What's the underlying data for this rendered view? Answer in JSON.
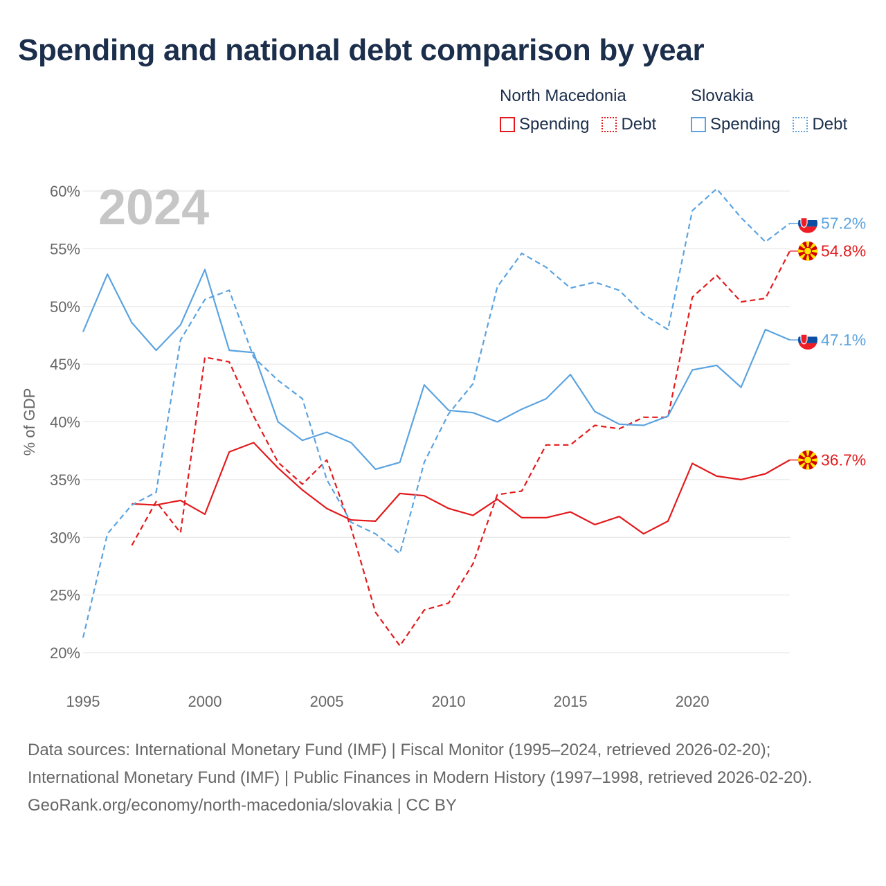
{
  "title": "Spending and national debt comparison by year",
  "legend": {
    "groups": [
      {
        "name": "North Macedonia",
        "color": "#e31a1c",
        "items": [
          {
            "label": "Spending",
            "style": "solid"
          },
          {
            "label": "Debt",
            "style": "dotted"
          }
        ]
      },
      {
        "name": "Slovakia",
        "color": "#5ba3e0",
        "items": [
          {
            "label": "Spending",
            "style": "solid"
          },
          {
            "label": "Debt",
            "style": "dotted"
          }
        ]
      }
    ]
  },
  "year_watermark": "2024",
  "sources": {
    "line1": "Data sources: International Monetary Fund (IMF) | Fiscal Monitor (1995–2024, retrieved 2026-02-20); International Monetary Fund (IMF) | Public Finances in Modern History (1997–1998, retrieved 2026-02-20).",
    "line2": "GeoRank.org/economy/north-macedonia/slovakia | CC BY"
  },
  "chart_data": {
    "type": "line",
    "title": "Spending and national debt comparison by year",
    "xlabel": "",
    "ylabel": "% of GDP",
    "xlim": [
      1995,
      2024
    ],
    "ylim": [
      20,
      60
    ],
    "x_ticks": [
      1995,
      2000,
      2005,
      2010,
      2015,
      2020
    ],
    "y_ticks": [
      20,
      25,
      30,
      35,
      40,
      45,
      50,
      55,
      60
    ],
    "y_tick_labels": [
      "20%",
      "25%",
      "30%",
      "35%",
      "40%",
      "45%",
      "50%",
      "55%",
      "60%"
    ],
    "grid": true,
    "legend_position": "top-right",
    "series": [
      {
        "name": "North Macedonia Spending",
        "country": "North Macedonia",
        "metric": "Spending",
        "color": "#e31a1c",
        "dashed": false,
        "end_label": "36.7%",
        "flag": "north-macedonia-flag-icon",
        "x": [
          1997,
          1998,
          1999,
          2000,
          2001,
          2002,
          2003,
          2004,
          2005,
          2006,
          2007,
          2008,
          2009,
          2010,
          2011,
          2012,
          2013,
          2014,
          2015,
          2016,
          2017,
          2018,
          2019,
          2020,
          2021,
          2022,
          2023,
          2024
        ],
        "values": [
          32.9,
          32.8,
          33.2,
          32.0,
          37.4,
          38.2,
          36.0,
          34.1,
          32.5,
          31.5,
          31.4,
          33.8,
          33.6,
          32.5,
          31.9,
          33.3,
          31.7,
          31.7,
          32.2,
          31.1,
          31.8,
          30.3,
          31.4,
          36.4,
          35.3,
          35.0,
          35.5,
          36.7
        ]
      },
      {
        "name": "North Macedonia Debt",
        "country": "North Macedonia",
        "metric": "Debt",
        "color": "#e31a1c",
        "dashed": true,
        "end_label": "54.8%",
        "flag": "north-macedonia-flag-icon",
        "x": [
          1997,
          1998,
          1999,
          2000,
          2001,
          2002,
          2003,
          2004,
          2005,
          2006,
          2007,
          2008,
          2009,
          2010,
          2011,
          2012,
          2013,
          2014,
          2015,
          2016,
          2017,
          2018,
          2019,
          2020,
          2021,
          2022,
          2023,
          2024
        ],
        "values": [
          29.3,
          33.1,
          30.4,
          45.6,
          45.2,
          40.5,
          36.5,
          34.6,
          36.7,
          30.8,
          23.5,
          20.6,
          23.7,
          24.3,
          27.7,
          33.7,
          34.0,
          38.0,
          38.0,
          39.7,
          39.4,
          40.4,
          40.4,
          50.8,
          52.7,
          50.4,
          50.7,
          54.8
        ]
      },
      {
        "name": "Slovakia Spending",
        "country": "Slovakia",
        "metric": "Spending",
        "color": "#5ba3e0",
        "dashed": false,
        "end_label": "47.1%",
        "flag": "slovakia-flag-icon",
        "x": [
          1995,
          1996,
          1997,
          1998,
          1999,
          2000,
          2001,
          2002,
          2003,
          2004,
          2005,
          2006,
          2007,
          2008,
          2009,
          2010,
          2011,
          2012,
          2013,
          2014,
          2015,
          2016,
          2017,
          2018,
          2019,
          2020,
          2021,
          2022,
          2023,
          2024
        ],
        "values": [
          47.8,
          52.8,
          48.6,
          46.2,
          48.4,
          53.2,
          46.2,
          46.0,
          40.0,
          38.4,
          39.1,
          38.2,
          35.9,
          36.5,
          43.2,
          41.0,
          40.8,
          40.0,
          41.1,
          42.0,
          44.1,
          40.9,
          39.8,
          39.7,
          40.5,
          44.5,
          44.9,
          43.0,
          48.0,
          47.1
        ]
      },
      {
        "name": "Slovakia Debt",
        "country": "Slovakia",
        "metric": "Debt",
        "color": "#5ba3e0",
        "dashed": true,
        "end_label": "57.2%",
        "flag": "slovakia-flag-icon",
        "x": [
          1995,
          1996,
          1997,
          1998,
          1999,
          2000,
          2001,
          2002,
          2003,
          2004,
          2005,
          2006,
          2007,
          2008,
          2009,
          2010,
          2011,
          2012,
          2013,
          2014,
          2015,
          2016,
          2017,
          2018,
          2019,
          2020,
          2021,
          2022,
          2023,
          2024
        ],
        "values": [
          21.3,
          30.3,
          32.8,
          33.9,
          47.1,
          50.6,
          51.4,
          45.6,
          43.6,
          42.0,
          35.0,
          31.3,
          30.3,
          28.6,
          36.5,
          40.7,
          43.3,
          51.7,
          54.6,
          53.4,
          51.6,
          52.1,
          51.4,
          49.3,
          48.0,
          58.3,
          60.2,
          57.7,
          55.6,
          57.2
        ]
      }
    ]
  }
}
